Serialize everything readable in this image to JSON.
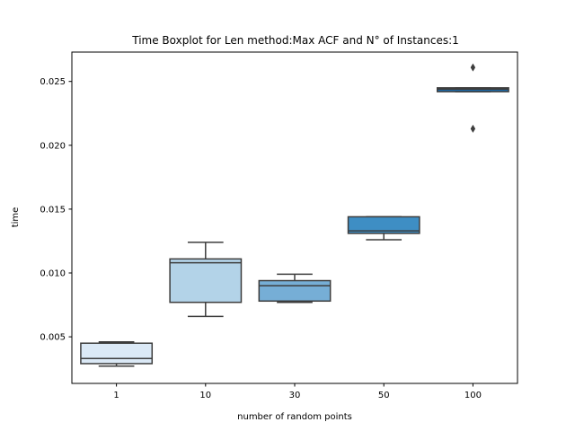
{
  "chart_data": {
    "type": "box",
    "title": "Time Boxplot for Len method:Max ACF and N° of Instances:1",
    "xlabel": "number of random points",
    "ylabel": "time",
    "categories": [
      "1",
      "10",
      "30",
      "50",
      "100"
    ],
    "ylim": [
      0.00135,
      0.0273
    ],
    "yticks": [
      0.005,
      0.01,
      0.015,
      0.02,
      0.025
    ],
    "ytick_labels": [
      "0.005",
      "0.010",
      "0.015",
      "0.020",
      "0.025"
    ],
    "grid": false,
    "boxes": [
      {
        "category": "1",
        "whisker_low": 0.0027,
        "q1": 0.0029,
        "median": 0.0033,
        "q3": 0.0045,
        "whisker_high": 0.0046,
        "outliers": [],
        "color": "#dbe9f6"
      },
      {
        "category": "10",
        "whisker_low": 0.0066,
        "q1": 0.0077,
        "median": 0.0108,
        "q3": 0.0111,
        "whisker_high": 0.0124,
        "outliers": [],
        "color": "#b3d3e8"
      },
      {
        "category": "30",
        "whisker_low": 0.0077,
        "q1": 0.0078,
        "median": 0.009,
        "q3": 0.0094,
        "whisker_high": 0.0099,
        "outliers": [],
        "color": "#76aed6"
      },
      {
        "category": "50",
        "whisker_low": 0.0126,
        "q1": 0.0131,
        "median": 0.0133,
        "q3": 0.0144,
        "whisker_high": 0.0144,
        "outliers": [],
        "color": "#3e8ec4"
      },
      {
        "category": "100",
        "whisker_low": 0.0242,
        "q1": 0.0242,
        "median": 0.0244,
        "q3": 0.0245,
        "whisker_high": 0.0245,
        "outliers": [
          0.0213,
          0.0261
        ],
        "color": "#1b69a8"
      }
    ],
    "line_color": "#3d3d3d"
  }
}
